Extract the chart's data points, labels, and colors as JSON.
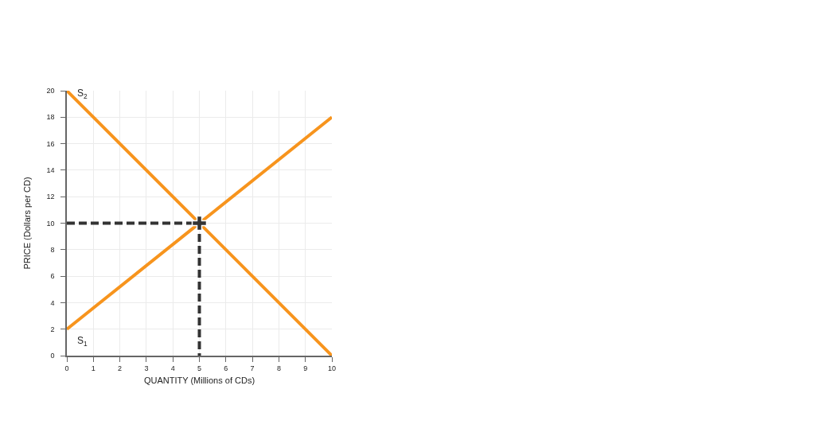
{
  "chart_data": {
    "type": "line",
    "xlabel": "QUANTITY (Millions of CDs)",
    "ylabel": "PRICE (Dollars per CD)",
    "xlim": [
      0,
      10
    ],
    "ylim": [
      0,
      20
    ],
    "xticks": [
      0,
      1,
      2,
      3,
      4,
      5,
      6,
      7,
      8,
      9,
      10
    ],
    "yticks": [
      0,
      2,
      4,
      6,
      8,
      10,
      12,
      14,
      16,
      18,
      20
    ],
    "grid": true,
    "legend": false,
    "marker": "none",
    "line_style": "solid",
    "series": [
      {
        "name": "S$_{1}$",
        "color": "#f7941d",
        "x": [
          0,
          10
        ],
        "values": [
          2,
          18
        ]
      },
      {
        "name": "S$_{2}$",
        "color": "#f7941d",
        "x": [
          0,
          10
        ],
        "values": [
          20,
          0
        ]
      },
      {
        "color": "#333333",
        "x": [
          0,
          5,
          5
        ],
        "values": [
          10,
          10,
          0
        ],
        "line_style": "dashed"
      },
      {
        "type": "scatter",
        "color": "#333333",
        "x": [
          5
        ],
        "values": [
          10
        ],
        "marker": "cross"
      }
    ]
  }
}
